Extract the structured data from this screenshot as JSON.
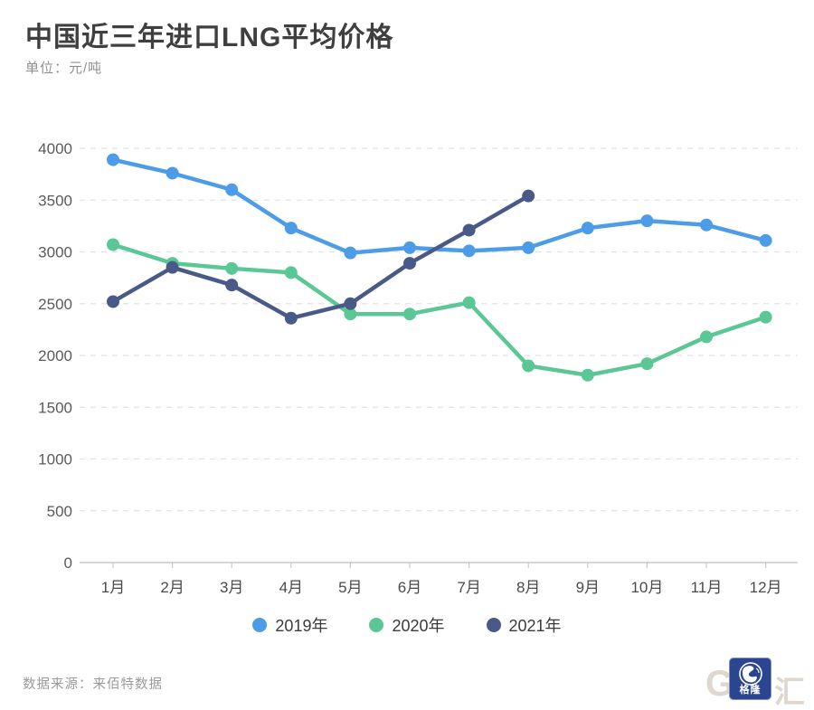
{
  "header": {
    "title": "中国近三年进口LNG平均价格",
    "subtitle": "单位：元/吨"
  },
  "chart_data": {
    "type": "line",
    "categories": [
      "1月",
      "2月",
      "3月",
      "4月",
      "5月",
      "6月",
      "7月",
      "8月",
      "9月",
      "10月",
      "11月",
      "12月"
    ],
    "series": [
      {
        "name": "2019年",
        "color": "#4D9CE8",
        "values": [
          3890,
          3760,
          3600,
          3230,
          2990,
          3040,
          3010,
          3040,
          3230,
          3300,
          3260,
          3110
        ]
      },
      {
        "name": "2020年",
        "color": "#5AC795",
        "values": [
          3070,
          2890,
          2840,
          2800,
          2400,
          2400,
          2510,
          1900,
          1810,
          1920,
          2180,
          2370
        ]
      },
      {
        "name": "2021年",
        "color": "#4A5A88",
        "values": [
          2520,
          2850,
          2680,
          2360,
          2500,
          2890,
          3210,
          3540
        ]
      }
    ],
    "title": "中国近三年进口LNG平均价格",
    "ylabel_unit": "元/吨",
    "ylim": [
      0,
      4000
    ],
    "ytick_step": 500,
    "yticks": [
      0,
      500,
      1000,
      1500,
      2000,
      2500,
      3000,
      3500,
      4000
    ],
    "grid": "horizontal-dashed",
    "legend_position": "bottom-center"
  },
  "footer": {
    "source": "数据来源：来佰特数据"
  },
  "watermark": {
    "left_letter": "G",
    "logo_text": "格隆",
    "right_letter": "汇",
    "logo_color": "#2B4590"
  }
}
